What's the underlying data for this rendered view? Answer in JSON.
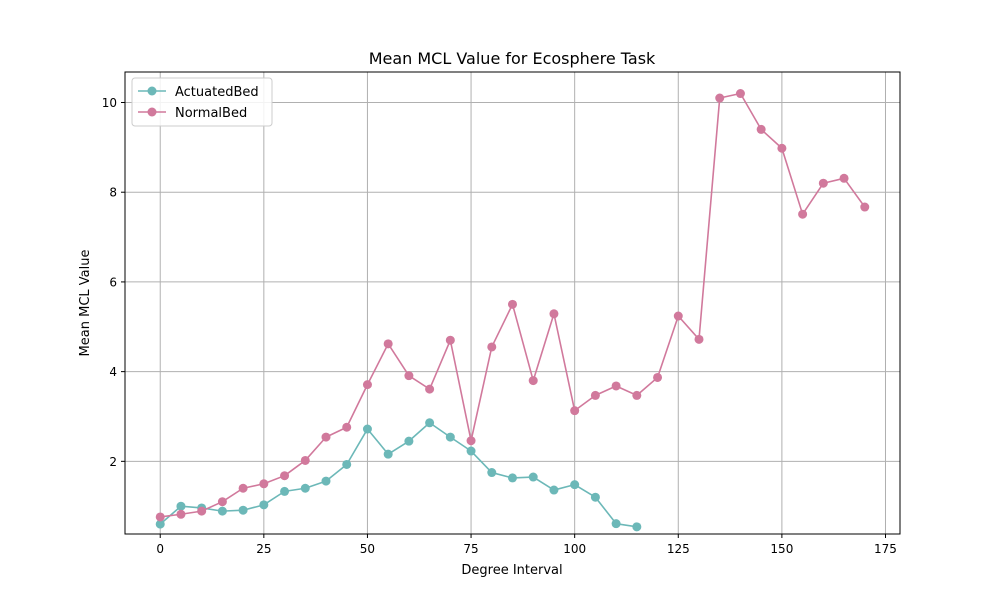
{
  "chart_data": {
    "type": "line",
    "title": "Mean MCL Value for Ecosphere Task",
    "xlabel": "Degree Interval",
    "ylabel": "Mean MCL Value",
    "xlim": [
      -8.5,
      178.5
    ],
    "ylim": [
      0.38,
      10.68
    ],
    "xticks": [
      0,
      25,
      50,
      75,
      100,
      125,
      150,
      175
    ],
    "yticks": [
      2,
      4,
      6,
      8,
      10
    ],
    "grid": true,
    "legend_position": "top-left",
    "series": [
      {
        "name": "ActuatedBed",
        "color": "#6cb8b8",
        "x": [
          0,
          5,
          10,
          15,
          20,
          25,
          30,
          35,
          40,
          45,
          50,
          55,
          60,
          65,
          70,
          75,
          80,
          85,
          90,
          95,
          100,
          105,
          110,
          115
        ],
        "y": [
          0.6,
          1.0,
          0.96,
          0.89,
          0.91,
          1.03,
          1.33,
          1.4,
          1.56,
          1.93,
          2.72,
          2.16,
          2.45,
          2.86,
          2.54,
          2.23,
          1.75,
          1.63,
          1.65,
          1.36,
          1.48,
          1.2,
          0.61,
          0.54
        ]
      },
      {
        "name": "NormalBed",
        "color": "#d1799c",
        "x": [
          0,
          5,
          10,
          15,
          20,
          25,
          30,
          35,
          40,
          45,
          50,
          55,
          60,
          65,
          70,
          75,
          80,
          85,
          90,
          95,
          100,
          105,
          110,
          115,
          120,
          125,
          130,
          135,
          140,
          145,
          150,
          155,
          160,
          165,
          170
        ],
        "y": [
          0.76,
          0.82,
          0.89,
          1.1,
          1.4,
          1.5,
          1.68,
          2.02,
          2.54,
          2.76,
          3.71,
          4.62,
          3.91,
          3.61,
          4.7,
          2.46,
          4.55,
          5.5,
          3.8,
          5.29,
          3.13,
          3.47,
          3.68,
          3.47,
          3.87,
          5.24,
          4.72,
          10.1,
          10.2,
          9.4,
          8.98,
          7.51,
          8.2,
          8.31,
          7.67
        ]
      }
    ]
  }
}
